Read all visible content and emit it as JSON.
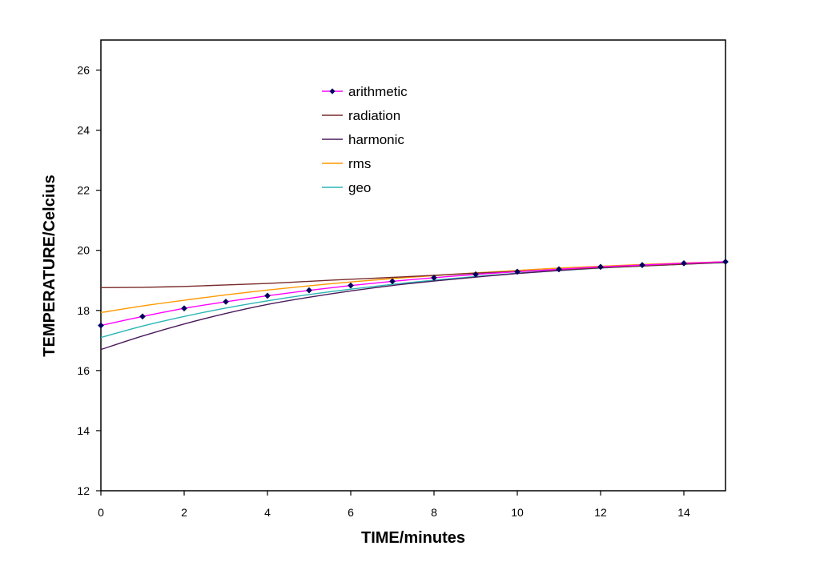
{
  "chart_data": {
    "type": "line",
    "title": "",
    "xlabel": "TIME/minutes",
    "ylabel": "TEMPERATURE/Celcius",
    "xlim": [
      0,
      15
    ],
    "ylim": [
      12,
      27
    ],
    "xticks": [
      0,
      2,
      4,
      6,
      8,
      10,
      12,
      14
    ],
    "yticks": [
      12,
      14,
      16,
      18,
      20,
      22,
      24,
      26
    ],
    "grid": false,
    "legend_position": "top-center",
    "x": [
      0,
      1,
      2,
      3,
      4,
      5,
      6,
      7,
      8,
      9,
      10,
      11,
      12,
      13,
      14,
      15
    ],
    "series": [
      {
        "name": "arithmetic",
        "color": "#ff00ff",
        "marker": "diamond",
        "marker_color": "#00005e",
        "values": [
          17.5,
          17.8,
          18.07,
          18.29,
          18.49,
          18.67,
          18.83,
          18.97,
          19.09,
          19.2,
          19.29,
          19.37,
          19.45,
          19.51,
          19.57,
          19.62
        ]
      },
      {
        "name": "radiation",
        "color": "#7a2a2a",
        "marker": "none",
        "values": [
          18.76,
          18.77,
          18.8,
          18.85,
          18.9,
          18.97,
          19.04,
          19.1,
          19.17,
          19.24,
          19.3,
          19.36,
          19.42,
          19.48,
          19.54,
          19.6
        ]
      },
      {
        "name": "harmonic",
        "color": "#4a1a5a",
        "marker": "none",
        "values": [
          16.7,
          17.15,
          17.55,
          17.9,
          18.2,
          18.44,
          18.65,
          18.83,
          18.98,
          19.11,
          19.23,
          19.33,
          19.42,
          19.49,
          19.55,
          19.6
        ]
      },
      {
        "name": "rms",
        "color": "#ff9900",
        "marker": "none",
        "values": [
          17.93,
          18.15,
          18.34,
          18.52,
          18.68,
          18.82,
          18.95,
          19.06,
          19.16,
          19.25,
          19.33,
          19.41,
          19.47,
          19.53,
          19.58,
          19.62
        ]
      },
      {
        "name": "geo",
        "color": "#2ab5b5",
        "marker": "none",
        "values": [
          17.1,
          17.48,
          17.8,
          18.08,
          18.32,
          18.53,
          18.71,
          18.87,
          19.01,
          19.13,
          19.24,
          19.33,
          19.41,
          19.48,
          19.54,
          19.59
        ]
      }
    ]
  }
}
